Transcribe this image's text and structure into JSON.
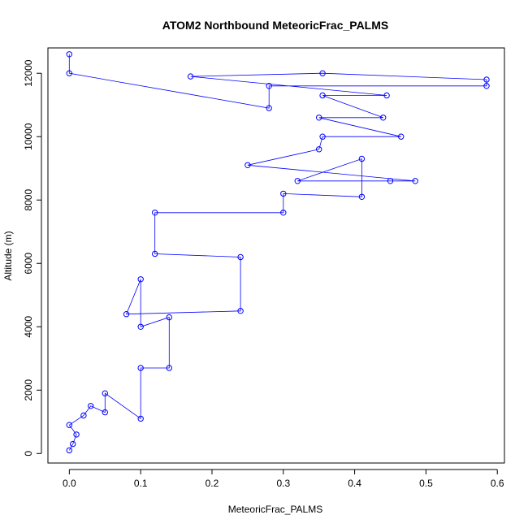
{
  "chart_data": {
    "type": "scatter",
    "title": "ATOM2 Northbound MeteoricFrac_PALMS",
    "xlabel": "MeteoricFrac_PALMS",
    "ylabel": "Altitude (m)",
    "xlim": [
      -0.03,
      0.61
    ],
    "ylim": [
      -300,
      12800
    ],
    "x_ticks": [
      0.0,
      0.1,
      0.2,
      0.3,
      0.4,
      0.5,
      0.6
    ],
    "x_tick_labels": [
      "0.0",
      "0.1",
      "0.2",
      "0.3",
      "0.4",
      "0.5",
      "0.6"
    ],
    "y_ticks": [
      0,
      2000,
      4000,
      6000,
      8000,
      10000,
      12000
    ],
    "y_tick_labels": [
      "0",
      "2000",
      "4000",
      "6000",
      "8000",
      "10000",
      "12000"
    ],
    "grid": false,
    "marker": "open-circle",
    "connect_points": true,
    "series_color": "#0000ff",
    "series": [
      {
        "points": [
          {
            "x": 0.0,
            "y": 100
          },
          {
            "x": 0.005,
            "y": 300
          },
          {
            "x": 0.01,
            "y": 600
          },
          {
            "x": 0.0,
            "y": 900
          },
          {
            "x": 0.02,
            "y": 1200
          },
          {
            "x": 0.03,
            "y": 1500
          },
          {
            "x": 0.05,
            "y": 1300
          },
          {
            "x": 0.05,
            "y": 1900
          },
          {
            "x": 0.1,
            "y": 1100
          },
          {
            "x": 0.1,
            "y": 2700
          },
          {
            "x": 0.14,
            "y": 2700
          },
          {
            "x": 0.14,
            "y": 4300
          },
          {
            "x": 0.1,
            "y": 4000
          },
          {
            "x": 0.1,
            "y": 5500
          },
          {
            "x": 0.08,
            "y": 4400
          },
          {
            "x": 0.24,
            "y": 4500
          },
          {
            "x": 0.24,
            "y": 6200
          },
          {
            "x": 0.12,
            "y": 6300
          },
          {
            "x": 0.12,
            "y": 7600
          },
          {
            "x": 0.3,
            "y": 7600
          },
          {
            "x": 0.3,
            "y": 8200
          },
          {
            "x": 0.41,
            "y": 8100
          },
          {
            "x": 0.41,
            "y": 9300
          },
          {
            "x": 0.32,
            "y": 8600
          },
          {
            "x": 0.45,
            "y": 8600
          },
          {
            "x": 0.485,
            "y": 8600
          },
          {
            "x": 0.25,
            "y": 9100
          },
          {
            "x": 0.35,
            "y": 9600
          },
          {
            "x": 0.355,
            "y": 10000
          },
          {
            "x": 0.465,
            "y": 10000
          },
          {
            "x": 0.35,
            "y": 10600
          },
          {
            "x": 0.44,
            "y": 10600
          },
          {
            "x": 0.355,
            "y": 11300
          },
          {
            "x": 0.445,
            "y": 11300
          },
          {
            "x": 0.17,
            "y": 11900
          },
          {
            "x": 0.355,
            "y": 12000
          },
          {
            "x": 0.585,
            "y": 11800
          },
          {
            "x": 0.585,
            "y": 11600
          },
          {
            "x": 0.28,
            "y": 11600
          },
          {
            "x": 0.28,
            "y": 10900
          },
          {
            "x": 0.0,
            "y": 12000
          },
          {
            "x": 0.0,
            "y": 12600
          }
        ]
      }
    ]
  }
}
